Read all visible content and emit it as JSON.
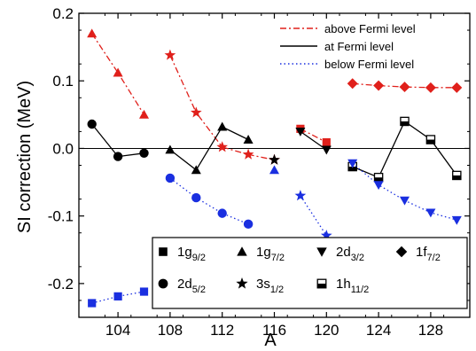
{
  "chart_data": {
    "type": "line",
    "xlabel": "A",
    "ylabel": "SI correction (MeV)",
    "xlim": [
      101,
      131
    ],
    "ylim": [
      -0.25,
      0.2
    ],
    "x_ticks": [
      104,
      108,
      112,
      116,
      120,
      124,
      128
    ],
    "y_ticks": [
      -0.2,
      -0.1,
      0.0,
      0.1,
      0.2
    ],
    "x_tick_labels": [
      "104",
      "108",
      "112",
      "116",
      "120",
      "124",
      "128"
    ],
    "y_tick_labels": [
      "-0.2",
      "-0.1",
      "0.0",
      "0.1",
      "0.2"
    ],
    "zero_line": true,
    "line_legend": [
      {
        "label": "above Fermi level",
        "style": "dashdot",
        "color": "#e0201b"
      },
      {
        "label": "at Fermi level",
        "style": "solid",
        "color": "#000000"
      },
      {
        "label": "below Fermi level",
        "style": "dotted",
        "color": "#1a2fe0"
      }
    ],
    "marker_legend": [
      {
        "marker": "square",
        "base": "1g",
        "sub": "9/2"
      },
      {
        "marker": "triangle-up",
        "base": "1g",
        "sub": "7/2"
      },
      {
        "marker": "triangle-down",
        "base": "2d",
        "sub": "3/2"
      },
      {
        "marker": "diamond",
        "base": "1f",
        "sub": "7/2"
      },
      {
        "marker": "circle",
        "base": "2d",
        "sub": "5/2"
      },
      {
        "marker": "star",
        "base": "3s",
        "sub": "1/2"
      },
      {
        "marker": "half-square",
        "base": "1h",
        "sub": "11/2"
      }
    ],
    "series": [
      {
        "level": "above",
        "color": "#e0201b",
        "style": "dashdot",
        "points": [
          {
            "x": 102,
            "y": 0.17,
            "m": "triangle-up"
          },
          {
            "x": 104,
            "y": 0.112,
            "m": "triangle-up"
          },
          {
            "x": 106,
            "y": 0.05,
            "m": "triangle-up"
          }
        ]
      },
      {
        "level": "above",
        "color": "#e0201b",
        "style": "dashdot",
        "points": [
          {
            "x": 108,
            "y": 0.138,
            "m": "star"
          },
          {
            "x": 110,
            "y": 0.053,
            "m": "star"
          },
          {
            "x": 112,
            "y": 0.002,
            "m": "star"
          },
          {
            "x": 114,
            "y": -0.009,
            "m": "star"
          },
          {
            "x": 116,
            "y": -0.017,
            "m": "star"
          }
        ]
      },
      {
        "level": "above",
        "color": "#e0201b",
        "style": "dashdot",
        "points": [
          {
            "x": 118,
            "y": 0.029,
            "m": "square"
          },
          {
            "x": 120,
            "y": 0.009,
            "m": "square"
          }
        ]
      },
      {
        "level": "above",
        "color": "#e0201b",
        "style": "dashdot",
        "points": [
          {
            "x": 122,
            "y": 0.096,
            "m": "diamond"
          },
          {
            "x": 124,
            "y": 0.093,
            "m": "diamond"
          },
          {
            "x": 126,
            "y": 0.091,
            "m": "diamond"
          },
          {
            "x": 128,
            "y": 0.09,
            "m": "diamond"
          },
          {
            "x": 130,
            "y": 0.09,
            "m": "diamond"
          }
        ]
      },
      {
        "level": "at",
        "color": "#000000",
        "style": "solid",
        "points": [
          {
            "x": 102,
            "y": 0.036,
            "m": "circle"
          },
          {
            "x": 104,
            "y": -0.012,
            "m": "circle"
          },
          {
            "x": 106,
            "y": -0.007,
            "m": "circle"
          }
        ]
      },
      {
        "level": "at",
        "color": "#000000",
        "style": "solid",
        "points": [
          {
            "x": 108,
            "y": -0.002,
            "m": "triangle-up"
          },
          {
            "x": 110,
            "y": -0.032,
            "m": "triangle-up"
          },
          {
            "x": 112,
            "y": 0.032,
            "m": "triangle-up"
          },
          {
            "x": 114,
            "y": 0.013,
            "m": "triangle-up"
          }
        ]
      },
      {
        "level": "at",
        "color": "#000000",
        "style": "solid",
        "points": [
          {
            "x": 116,
            "y": -0.017,
            "m": "star"
          }
        ]
      },
      {
        "level": "at",
        "color": "#000000",
        "style": "solid",
        "points": [
          {
            "x": 118,
            "y": 0.025,
            "m": "triangle-down"
          },
          {
            "x": 120,
            "y": -0.002,
            "m": "triangle-down"
          }
        ]
      },
      {
        "level": "at",
        "color": "#000000",
        "style": "solid",
        "points": [
          {
            "x": 122,
            "y": -0.027,
            "m": "half-square"
          },
          {
            "x": 124,
            "y": -0.043,
            "m": "half-square"
          },
          {
            "x": 126,
            "y": 0.04,
            "m": "half-square"
          },
          {
            "x": 128,
            "y": 0.013,
            "m": "half-square"
          },
          {
            "x": 130,
            "y": -0.04,
            "m": "half-square"
          }
        ]
      },
      {
        "level": "below",
        "color": "#1a2fe0",
        "style": "dotted",
        "points": [
          {
            "x": 102,
            "y": -0.229,
            "m": "square"
          },
          {
            "x": 104,
            "y": -0.219,
            "m": "square"
          },
          {
            "x": 106,
            "y": -0.212,
            "m": "square"
          }
        ]
      },
      {
        "level": "below",
        "color": "#1a2fe0",
        "style": "dotted",
        "points": [
          {
            "x": 108,
            "y": -0.044,
            "m": "circle"
          },
          {
            "x": 110,
            "y": -0.073,
            "m": "circle"
          },
          {
            "x": 112,
            "y": -0.096,
            "m": "circle"
          },
          {
            "x": 114,
            "y": -0.112,
            "m": "circle"
          }
        ]
      },
      {
        "level": "below",
        "color": "#1a2fe0",
        "style": "dotted",
        "points": [
          {
            "x": 116,
            "y": -0.032,
            "m": "triangle-up"
          }
        ]
      },
      {
        "level": "below",
        "color": "#1a2fe0",
        "style": "dotted",
        "points": [
          {
            "x": 118,
            "y": -0.07,
            "m": "star"
          },
          {
            "x": 120,
            "y": -0.129,
            "m": "star"
          }
        ]
      },
      {
        "level": "below",
        "color": "#1a2fe0",
        "style": "dotted",
        "points": [
          {
            "x": 122,
            "y": -0.022,
            "m": "triangle-down"
          },
          {
            "x": 124,
            "y": -0.054,
            "m": "triangle-down"
          },
          {
            "x": 126,
            "y": -0.077,
            "m": "triangle-down"
          },
          {
            "x": 128,
            "y": -0.095,
            "m": "triangle-down"
          },
          {
            "x": 130,
            "y": -0.106,
            "m": "triangle-down"
          }
        ]
      }
    ]
  }
}
